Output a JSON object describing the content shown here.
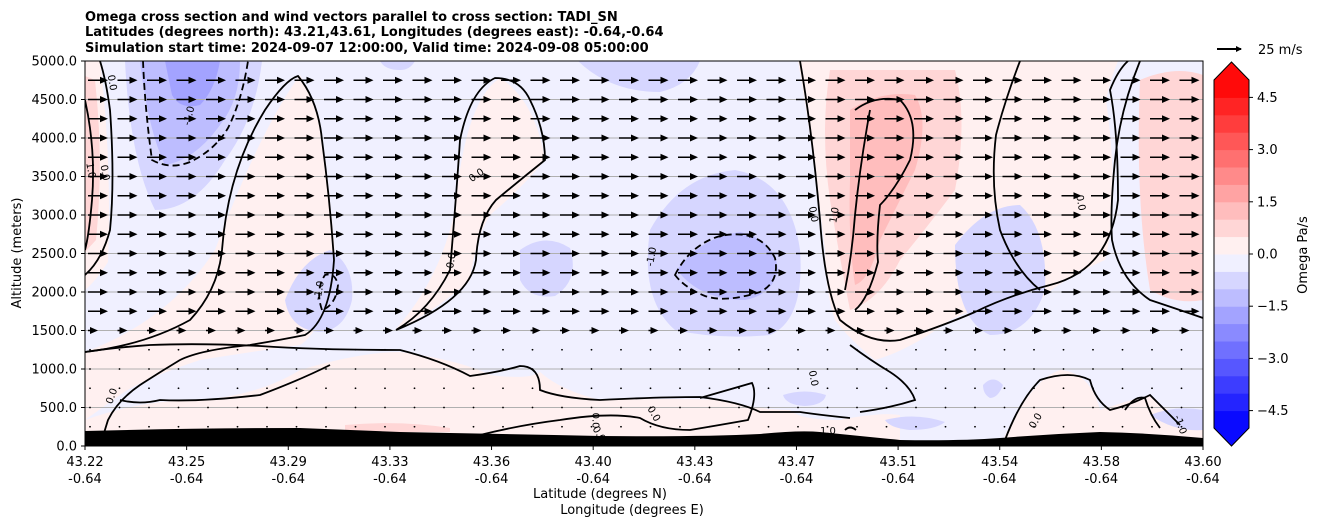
{
  "title_lines": [
    "Omega cross section and wind vectors parallel to cross section: TADI_SN",
    "Latitudes (degrees north): 43.21,43.61, Longitudes (degrees east): -0.64,-0.64",
    "Simulation start time: 2024-09-07 12:00:00, Valid time: 2024-09-08 05:00:00"
  ],
  "quiver_key_label": "25 m/s",
  "chart_data": {
    "type": "heatmap",
    "xlabel_line1": "Latitude (degrees N)",
    "xlabel_line2": "Longitude (degrees E)",
    "ylabel": "Altitude (meters)",
    "ylim": [
      0,
      5000
    ],
    "y_ticks": [
      0,
      500,
      1000,
      1500,
      2000,
      2500,
      3000,
      3500,
      4000,
      4500,
      5000
    ],
    "y_tick_labels": [
      "0.0",
      "500.0",
      "1000.0",
      "1500.0",
      "2000.0",
      "2500.0",
      "3000.0",
      "3500.0",
      "4000.0",
      "4500.0",
      "5000.0"
    ],
    "x_ticks": [
      {
        "lat": "43.22",
        "lon": "-0.64"
      },
      {
        "lat": "43.25",
        "lon": "-0.64"
      },
      {
        "lat": "43.29",
        "lon": "-0.64"
      },
      {
        "lat": "43.33",
        "lon": "-0.64"
      },
      {
        "lat": "43.36",
        "lon": "-0.64"
      },
      {
        "lat": "43.40",
        "lon": "-0.64"
      },
      {
        "lat": "43.43",
        "lon": "-0.64"
      },
      {
        "lat": "43.47",
        "lon": "-0.64"
      },
      {
        "lat": "43.51",
        "lon": "-0.64"
      },
      {
        "lat": "43.54",
        "lon": "-0.64"
      },
      {
        "lat": "43.58",
        "lon": "-0.64"
      },
      {
        "lat": "43.60",
        "lon": "-0.64"
      }
    ],
    "grid": "horizontal lines",
    "colorbar": {
      "label": "Omega Pa/s",
      "levels": [
        -5.0,
        -4.5,
        -4.0,
        -3.5,
        -3.0,
        -2.5,
        -2.0,
        -1.5,
        -1.0,
        -0.5,
        0.0,
        0.5,
        1.0,
        1.5,
        2.0,
        2.5,
        3.0,
        3.5,
        4.0,
        4.5,
        5.0
      ],
      "colors": [
        "#0a0aff",
        "#2424ff",
        "#3d3dff",
        "#5757ff",
        "#7070ff",
        "#8a8aff",
        "#a3a3ff",
        "#bdbdff",
        "#d6d6ff",
        "#f0f0ff",
        "#fff0f0",
        "#ffd6d6",
        "#ffbdbd",
        "#ffa3a3",
        "#ff8a8a",
        "#ff7070",
        "#ff5757",
        "#ff3d3d",
        "#ff2424",
        "#ff0a0a"
      ],
      "tick_values": [
        -4.5,
        -3.0,
        -1.5,
        0.0,
        1.5,
        3.0,
        4.5
      ],
      "tick_labels": [
        "−4.5",
        "−3.0",
        "−1.5",
        "0.0",
        "1.5",
        "3.0",
        "4.5"
      ],
      "extend": "both"
    },
    "contour_labels": [
      {
        "text": "1.0",
        "x": 0.06,
        "y": 3580,
        "rot": 80
      },
      {
        "text": "0.0",
        "x": 0.2,
        "y": 3550,
        "rot": 80
      },
      {
        "text": "0.0",
        "x": 0.27,
        "y": 4720,
        "rot": 80
      },
      {
        "text": "-1.0",
        "x": 1.02,
        "y": 4290,
        "rot": -75
      },
      {
        "text": "-1.0",
        "x": 2.3,
        "y": 2020,
        "rot": -80
      },
      {
        "text": "0.0",
        "x": 3.85,
        "y": 3520,
        "rot": -35
      },
      {
        "text": "0.0",
        "x": 3.6,
        "y": 2410,
        "rot": -80
      },
      {
        "text": "0.0",
        "x": 0.26,
        "y": 650,
        "rot": -70
      },
      {
        "text": "0.0",
        "x": 5.03,
        "y": 330,
        "rot": 90
      },
      {
        "text": "0.0",
        "x": 5.06,
        "y": 160,
        "rot": 60
      },
      {
        "text": "0.0",
        "x": 5.6,
        "y": 420,
        "rot": 60
      },
      {
        "text": "-1.0",
        "x": 5.57,
        "y": 2460,
        "rot": -80
      },
      {
        "text": "0.0",
        "x": 7.17,
        "y": 3010,
        "rot": 80
      },
      {
        "text": "1.0",
        "x": 7.37,
        "y": 3000,
        "rot": -80
      },
      {
        "text": "0.0",
        "x": 7.17,
        "y": 880,
        "rot": 80
      },
      {
        "text": "1.0",
        "x": 7.31,
        "y": 200,
        "rot": 0
      },
      {
        "text": "0.0",
        "x": 9.35,
        "y": 330,
        "rot": -60
      },
      {
        "text": "-1.0",
        "x": 10.78,
        "y": 280,
        "rot": 70
      },
      {
        "text": "0.0",
        "x": 9.8,
        "y": 3160,
        "rot": 80
      },
      {
        "text": "0.0",
        "x": 11.95,
        "y": 550,
        "rot": 90
      }
    ]
  }
}
